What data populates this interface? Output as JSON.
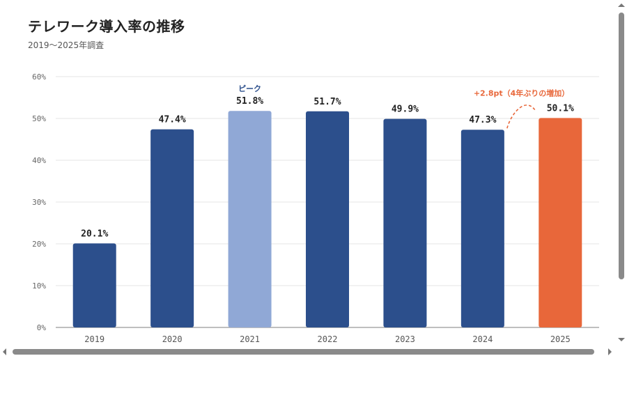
{
  "title": "テレワーク導入率の推移",
  "subtitle": "2019〜2025年調査",
  "colors": {
    "bar_default": "#2c4f8c",
    "bar_peak": "#90a8d6",
    "bar_highlight": "#e8673a",
    "grid": "#e6e6e6",
    "axis": "#999999"
  },
  "chart_data": {
    "type": "bar",
    "categories": [
      "2019",
      "2020",
      "2021",
      "2022",
      "2023",
      "2024",
      "2025"
    ],
    "values": [
      20.1,
      47.4,
      51.8,
      51.7,
      49.9,
      47.3,
      50.1
    ],
    "value_labels": [
      "20.1%",
      "47.4%",
      "51.8%",
      "51.7%",
      "49.9%",
      "47.3%",
      "50.1%"
    ],
    "ylim": [
      0,
      60
    ],
    "yticks": [
      0,
      10,
      20,
      30,
      40,
      50,
      60
    ],
    "ytick_labels": [
      "0%",
      "10%",
      "20%",
      "30%",
      "40%",
      "50%",
      "60%"
    ],
    "grid": true,
    "peak_index": 2,
    "peak_label": "ピーク",
    "highlight_index": 6,
    "annotation": "+2.8pt（4年ぶりの増加）",
    "xlabel": "",
    "ylabel": ""
  }
}
